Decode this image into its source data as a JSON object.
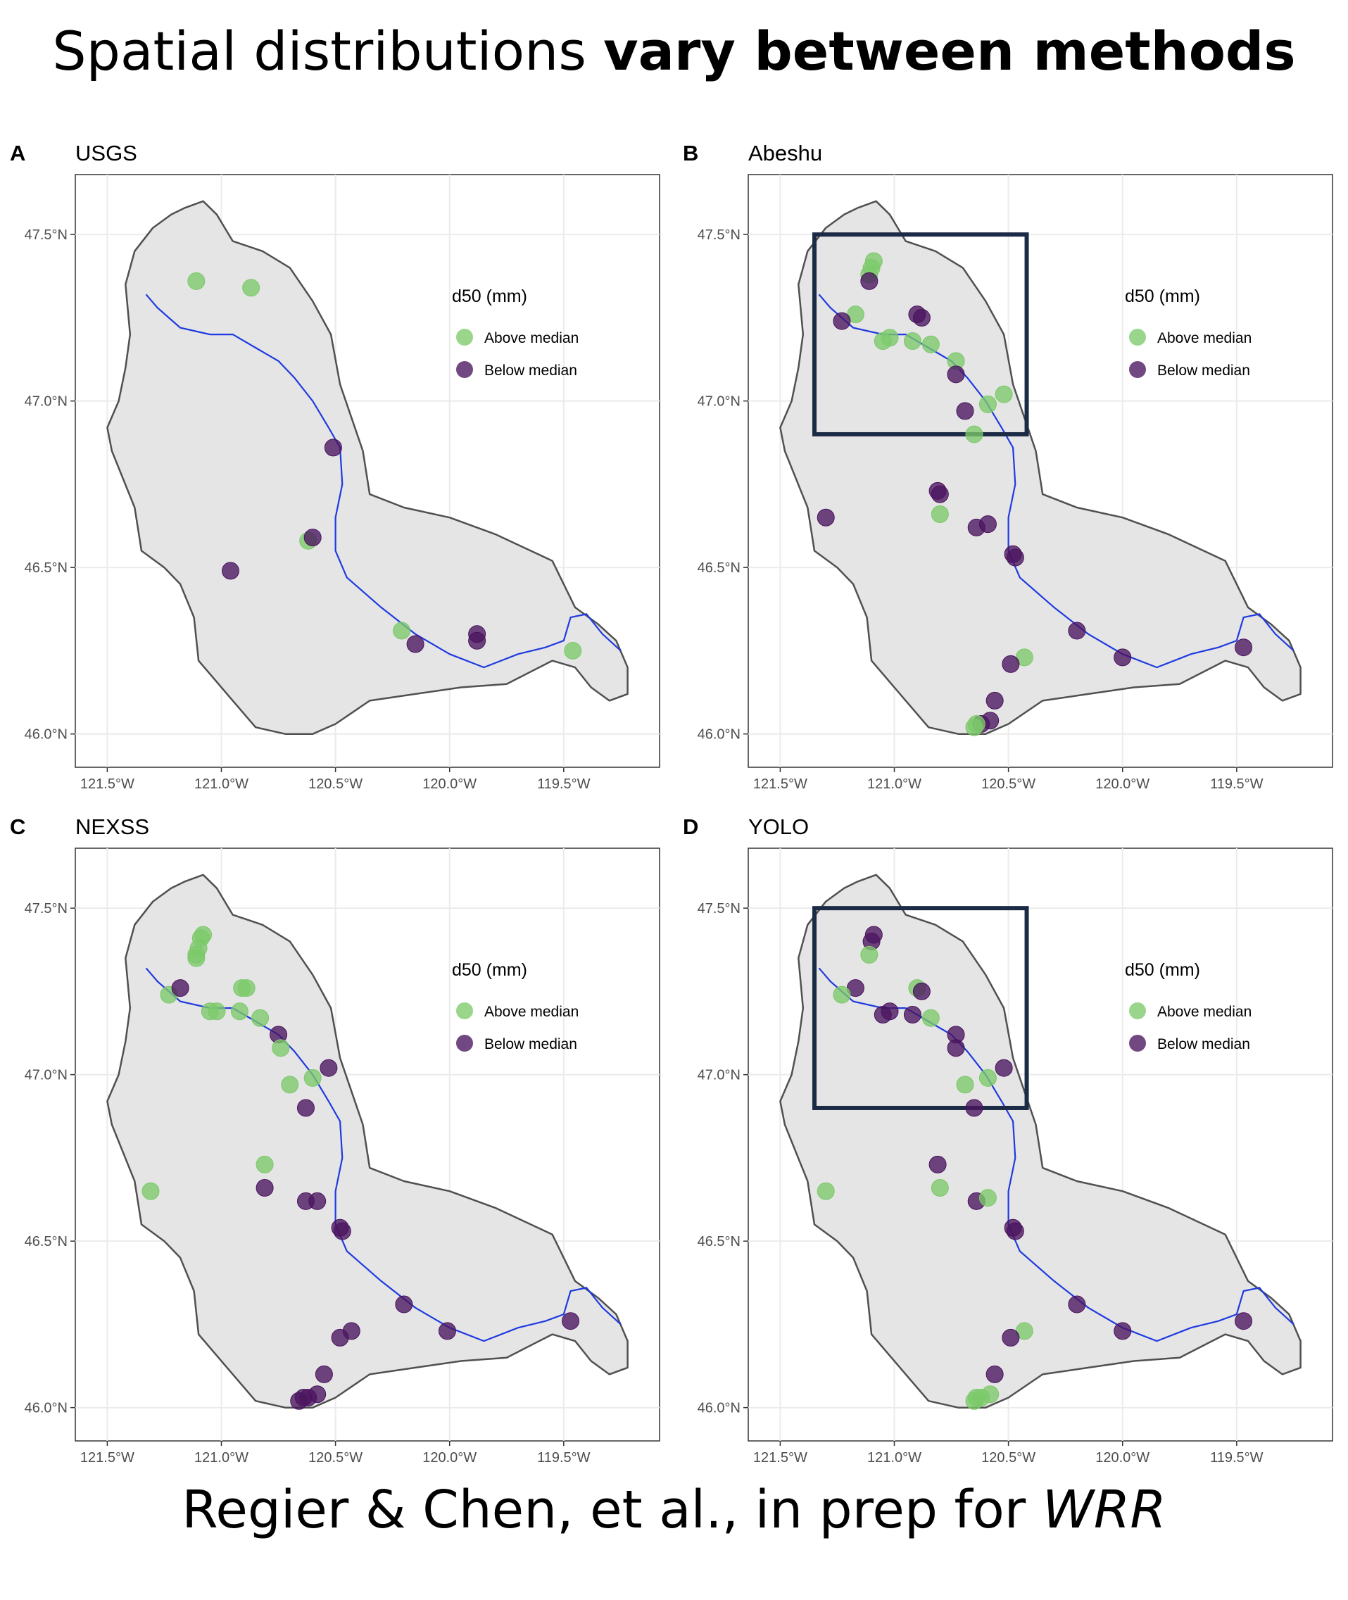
{
  "title": {
    "plain": "Spatial distributions ",
    "bold": "vary between methods"
  },
  "citation": {
    "plain": "Regier & Chen, et al., in prep for ",
    "italic": "WRR"
  },
  "colors": {
    "above": "#7cc96a",
    "below": "#4a145f",
    "river": "#1f3ae0",
    "basin_fill": "#e5e5e5",
    "basin_stroke": "#505050",
    "highlight_box": "#1b2a45"
  },
  "axes": {
    "x_ticks": [
      -121.5,
      -121.0,
      -120.5,
      -120.0,
      -119.5
    ],
    "x_tick_labels": [
      "121.5°W",
      "121.0°W",
      "120.5°W",
      "120.0°W",
      "119.5°W"
    ],
    "y_ticks": [
      46.0,
      46.5,
      47.0,
      47.5
    ],
    "y_tick_labels": [
      "46.0°N",
      "46.5°N",
      "47.0°N",
      "47.5°N"
    ],
    "xlim": [
      -121.64,
      -119.08
    ],
    "ylim": [
      45.9,
      47.68
    ]
  },
  "legend": {
    "title": "d50 (mm)",
    "above_label": "Above median",
    "below_label": "Below median",
    "placement": "right inside"
  },
  "highlight_region": {
    "lon": [
      -121.35,
      -120.42
    ],
    "lat": [
      46.9,
      47.5
    ]
  },
  "basin_outline": [
    [
      -121.16,
      47.58
    ],
    [
      -121.08,
      47.6
    ],
    [
      -121.02,
      47.56
    ],
    [
      -120.95,
      47.48
    ],
    [
      -120.82,
      47.45
    ],
    [
      -120.7,
      47.4
    ],
    [
      -120.6,
      47.3
    ],
    [
      -120.52,
      47.2
    ],
    [
      -120.48,
      47.05
    ],
    [
      -120.43,
      46.95
    ],
    [
      -120.38,
      46.85
    ],
    [
      -120.35,
      46.72
    ],
    [
      -120.2,
      46.68
    ],
    [
      -120.0,
      46.65
    ],
    [
      -119.8,
      46.6
    ],
    [
      -119.55,
      46.52
    ],
    [
      -119.45,
      46.38
    ],
    [
      -119.35,
      46.33
    ],
    [
      -119.27,
      46.28
    ],
    [
      -119.22,
      46.2
    ],
    [
      -119.22,
      46.12
    ],
    [
      -119.3,
      46.1
    ],
    [
      -119.38,
      46.14
    ],
    [
      -119.45,
      46.2
    ],
    [
      -119.55,
      46.22
    ],
    [
      -119.75,
      46.15
    ],
    [
      -119.95,
      46.14
    ],
    [
      -120.15,
      46.12
    ],
    [
      -120.35,
      46.1
    ],
    [
      -120.5,
      46.03
    ],
    [
      -120.6,
      46.0
    ],
    [
      -120.72,
      46.0
    ],
    [
      -120.85,
      46.02
    ],
    [
      -120.95,
      46.1
    ],
    [
      -121.1,
      46.22
    ],
    [
      -121.12,
      46.35
    ],
    [
      -121.18,
      46.45
    ],
    [
      -121.25,
      46.5
    ],
    [
      -121.35,
      46.55
    ],
    [
      -121.38,
      46.68
    ],
    [
      -121.48,
      46.85
    ],
    [
      -121.5,
      46.92
    ],
    [
      -121.45,
      47.0
    ],
    [
      -121.42,
      47.1
    ],
    [
      -121.4,
      47.2
    ],
    [
      -121.42,
      47.35
    ],
    [
      -121.38,
      47.45
    ],
    [
      -121.3,
      47.52
    ],
    [
      -121.22,
      47.56
    ]
  ],
  "river": [
    [
      -121.33,
      47.32
    ],
    [
      -121.28,
      47.28
    ],
    [
      -121.18,
      47.22
    ],
    [
      -121.05,
      47.2
    ],
    [
      -120.95,
      47.2
    ],
    [
      -120.85,
      47.16
    ],
    [
      -120.75,
      47.12
    ],
    [
      -120.68,
      47.07
    ],
    [
      -120.6,
      47.0
    ],
    [
      -120.53,
      46.92
    ],
    [
      -120.48,
      46.86
    ],
    [
      -120.47,
      46.75
    ],
    [
      -120.5,
      46.65
    ],
    [
      -120.5,
      46.55
    ],
    [
      -120.45,
      46.47
    ],
    [
      -120.3,
      46.38
    ],
    [
      -120.15,
      46.3
    ],
    [
      -120.0,
      46.24
    ],
    [
      -119.85,
      46.2
    ],
    [
      -119.7,
      46.24
    ],
    [
      -119.58,
      46.26
    ],
    [
      -119.5,
      46.28
    ],
    [
      -119.47,
      46.35
    ],
    [
      -119.4,
      46.36
    ],
    [
      -119.33,
      46.3
    ],
    [
      -119.25,
      46.25
    ]
  ],
  "panels": [
    {
      "letter": "A",
      "name": "USGS",
      "points": [
        {
          "lon": -121.11,
          "lat": 47.36,
          "class": "above"
        },
        {
          "lon": -120.87,
          "lat": 47.34,
          "class": "above"
        },
        {
          "lon": -120.51,
          "lat": 46.86,
          "class": "below"
        },
        {
          "lon": -120.62,
          "lat": 46.58,
          "class": "above"
        },
        {
          "lon": -120.6,
          "lat": 46.59,
          "class": "below"
        },
        {
          "lon": -120.96,
          "lat": 46.49,
          "class": "below"
        },
        {
          "lon": -120.21,
          "lat": 46.31,
          "class": "above"
        },
        {
          "lon": -120.15,
          "lat": 46.27,
          "class": "below"
        },
        {
          "lon": -119.88,
          "lat": 46.3,
          "class": "below"
        },
        {
          "lon": -119.88,
          "lat": 46.28,
          "class": "below"
        },
        {
          "lon": -119.46,
          "lat": 46.25,
          "class": "above"
        }
      ]
    },
    {
      "letter": "B",
      "name": "Abeshu",
      "highlight": true,
      "points": [
        {
          "lon": -121.09,
          "lat": 47.42,
          "class": "above"
        },
        {
          "lon": -121.1,
          "lat": 47.4,
          "class": "above"
        },
        {
          "lon": -121.11,
          "lat": 47.38,
          "class": "above"
        },
        {
          "lon": -121.11,
          "lat": 47.36,
          "class": "below"
        },
        {
          "lon": -121.17,
          "lat": 47.26,
          "class": "above"
        },
        {
          "lon": -121.23,
          "lat": 47.24,
          "class": "below"
        },
        {
          "lon": -121.05,
          "lat": 47.18,
          "class": "above"
        },
        {
          "lon": -121.02,
          "lat": 47.19,
          "class": "above"
        },
        {
          "lon": -120.92,
          "lat": 47.18,
          "class": "above"
        },
        {
          "lon": -120.9,
          "lat": 47.26,
          "class": "below"
        },
        {
          "lon": -120.88,
          "lat": 47.25,
          "class": "below"
        },
        {
          "lon": -120.84,
          "lat": 47.17,
          "class": "above"
        },
        {
          "lon": -120.73,
          "lat": 47.12,
          "class": "above"
        },
        {
          "lon": -120.73,
          "lat": 47.08,
          "class": "below"
        },
        {
          "lon": -120.69,
          "lat": 46.97,
          "class": "below"
        },
        {
          "lon": -120.59,
          "lat": 46.99,
          "class": "above"
        },
        {
          "lon": -120.52,
          "lat": 47.02,
          "class": "above"
        },
        {
          "lon": -120.65,
          "lat": 46.9,
          "class": "above"
        },
        {
          "lon": -120.81,
          "lat": 46.73,
          "class": "below"
        },
        {
          "lon": -120.8,
          "lat": 46.72,
          "class": "below"
        },
        {
          "lon": -120.8,
          "lat": 46.66,
          "class": "above"
        },
        {
          "lon": -121.3,
          "lat": 46.65,
          "class": "below"
        },
        {
          "lon": -120.64,
          "lat": 46.62,
          "class": "below"
        },
        {
          "lon": -120.59,
          "lat": 46.63,
          "class": "below"
        },
        {
          "lon": -120.48,
          "lat": 46.54,
          "class": "below"
        },
        {
          "lon": -120.47,
          "lat": 46.53,
          "class": "below"
        },
        {
          "lon": -120.2,
          "lat": 46.31,
          "class": "below"
        },
        {
          "lon": -120.0,
          "lat": 46.23,
          "class": "below"
        },
        {
          "lon": -120.43,
          "lat": 46.23,
          "class": "above"
        },
        {
          "lon": -120.49,
          "lat": 46.21,
          "class": "below"
        },
        {
          "lon": -120.56,
          "lat": 46.1,
          "class": "below"
        },
        {
          "lon": -120.58,
          "lat": 46.04,
          "class": "below"
        },
        {
          "lon": -120.62,
          "lat": 46.03,
          "class": "below"
        },
        {
          "lon": -120.65,
          "lat": 46.02,
          "class": "above"
        },
        {
          "lon": -120.64,
          "lat": 46.03,
          "class": "above"
        },
        {
          "lon": -119.47,
          "lat": 46.26,
          "class": "below"
        }
      ]
    },
    {
      "letter": "C",
      "name": "NEXSS",
      "points": [
        {
          "lon": -121.08,
          "lat": 47.42,
          "class": "above"
        },
        {
          "lon": -121.09,
          "lat": 47.41,
          "class": "above"
        },
        {
          "lon": -121.1,
          "lat": 47.38,
          "class": "above"
        },
        {
          "lon": -121.11,
          "lat": 47.36,
          "class": "above"
        },
        {
          "lon": -121.11,
          "lat": 47.35,
          "class": "above"
        },
        {
          "lon": -121.23,
          "lat": 47.24,
          "class": "above"
        },
        {
          "lon": -121.18,
          "lat": 47.26,
          "class": "below"
        },
        {
          "lon": -121.05,
          "lat": 47.19,
          "class": "above"
        },
        {
          "lon": -121.02,
          "lat": 47.19,
          "class": "above"
        },
        {
          "lon": -120.92,
          "lat": 47.19,
          "class": "above"
        },
        {
          "lon": -120.91,
          "lat": 47.26,
          "class": "above"
        },
        {
          "lon": -120.89,
          "lat": 47.26,
          "class": "above"
        },
        {
          "lon": -120.83,
          "lat": 47.17,
          "class": "above"
        },
        {
          "lon": -120.75,
          "lat": 47.12,
          "class": "below"
        },
        {
          "lon": -120.74,
          "lat": 47.08,
          "class": "above"
        },
        {
          "lon": -120.7,
          "lat": 46.97,
          "class": "above"
        },
        {
          "lon": -120.6,
          "lat": 46.99,
          "class": "above"
        },
        {
          "lon": -120.53,
          "lat": 47.02,
          "class": "below"
        },
        {
          "lon": -120.63,
          "lat": 46.9,
          "class": "below"
        },
        {
          "lon": -120.81,
          "lat": 46.73,
          "class": "above"
        },
        {
          "lon": -120.81,
          "lat": 46.66,
          "class": "below"
        },
        {
          "lon": -121.31,
          "lat": 46.65,
          "class": "above"
        },
        {
          "lon": -120.63,
          "lat": 46.62,
          "class": "below"
        },
        {
          "lon": -120.58,
          "lat": 46.62,
          "class": "below"
        },
        {
          "lon": -120.48,
          "lat": 46.54,
          "class": "below"
        },
        {
          "lon": -120.47,
          "lat": 46.53,
          "class": "below"
        },
        {
          "lon": -120.2,
          "lat": 46.31,
          "class": "below"
        },
        {
          "lon": -120.01,
          "lat": 46.23,
          "class": "below"
        },
        {
          "lon": -120.43,
          "lat": 46.23,
          "class": "below"
        },
        {
          "lon": -120.48,
          "lat": 46.21,
          "class": "below"
        },
        {
          "lon": -120.55,
          "lat": 46.1,
          "class": "below"
        },
        {
          "lon": -120.58,
          "lat": 46.04,
          "class": "below"
        },
        {
          "lon": -120.62,
          "lat": 46.03,
          "class": "below"
        },
        {
          "lon": -120.64,
          "lat": 46.03,
          "class": "below"
        },
        {
          "lon": -120.66,
          "lat": 46.02,
          "class": "below"
        },
        {
          "lon": -119.47,
          "lat": 46.26,
          "class": "below"
        }
      ]
    },
    {
      "letter": "D",
      "name": "YOLO",
      "highlight": true,
      "points": [
        {
          "lon": -121.09,
          "lat": 47.42,
          "class": "below"
        },
        {
          "lon": -121.1,
          "lat": 47.4,
          "class": "below"
        },
        {
          "lon": -121.11,
          "lat": 47.36,
          "class": "above"
        },
        {
          "lon": -121.17,
          "lat": 47.26,
          "class": "below"
        },
        {
          "lon": -121.23,
          "lat": 47.24,
          "class": "above"
        },
        {
          "lon": -121.05,
          "lat": 47.18,
          "class": "below"
        },
        {
          "lon": -121.02,
          "lat": 47.19,
          "class": "below"
        },
        {
          "lon": -120.92,
          "lat": 47.18,
          "class": "below"
        },
        {
          "lon": -120.9,
          "lat": 47.26,
          "class": "above"
        },
        {
          "lon": -120.88,
          "lat": 47.25,
          "class": "below"
        },
        {
          "lon": -120.84,
          "lat": 47.17,
          "class": "above"
        },
        {
          "lon": -120.73,
          "lat": 47.12,
          "class": "below"
        },
        {
          "lon": -120.73,
          "lat": 47.08,
          "class": "below"
        },
        {
          "lon": -120.69,
          "lat": 46.97,
          "class": "above"
        },
        {
          "lon": -120.59,
          "lat": 46.99,
          "class": "above"
        },
        {
          "lon": -120.52,
          "lat": 47.02,
          "class": "below"
        },
        {
          "lon": -120.65,
          "lat": 46.9,
          "class": "below"
        },
        {
          "lon": -120.81,
          "lat": 46.73,
          "class": "below"
        },
        {
          "lon": -120.8,
          "lat": 46.66,
          "class": "above"
        },
        {
          "lon": -121.3,
          "lat": 46.65,
          "class": "above"
        },
        {
          "lon": -120.64,
          "lat": 46.62,
          "class": "below"
        },
        {
          "lon": -120.59,
          "lat": 46.63,
          "class": "above"
        },
        {
          "lon": -120.48,
          "lat": 46.54,
          "class": "below"
        },
        {
          "lon": -120.47,
          "lat": 46.53,
          "class": "below"
        },
        {
          "lon": -120.2,
          "lat": 46.31,
          "class": "below"
        },
        {
          "lon": -120.0,
          "lat": 46.23,
          "class": "below"
        },
        {
          "lon": -120.43,
          "lat": 46.23,
          "class": "above"
        },
        {
          "lon": -120.49,
          "lat": 46.21,
          "class": "below"
        },
        {
          "lon": -120.56,
          "lat": 46.1,
          "class": "below"
        },
        {
          "lon": -120.58,
          "lat": 46.04,
          "class": "above"
        },
        {
          "lon": -120.62,
          "lat": 46.03,
          "class": "above"
        },
        {
          "lon": -120.65,
          "lat": 46.02,
          "class": "above"
        },
        {
          "lon": -120.64,
          "lat": 46.03,
          "class": "above"
        },
        {
          "lon": -119.47,
          "lat": 46.26,
          "class": "below"
        }
      ]
    }
  ]
}
